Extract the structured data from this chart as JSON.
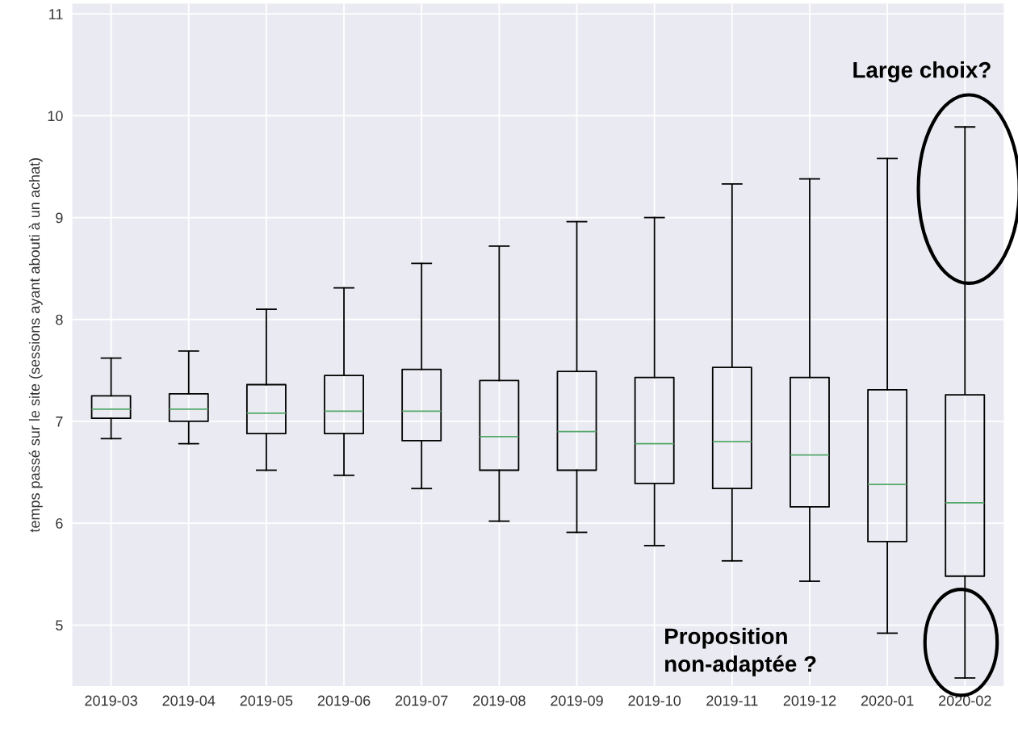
{
  "chart_data": {
    "type": "box",
    "ylabel": "temps passé sur le site (sessions ayant abouti à un achat)",
    "categories": [
      "2019-03",
      "2019-04",
      "2019-05",
      "2019-06",
      "2019-07",
      "2019-08",
      "2019-09",
      "2019-10",
      "2019-11",
      "2019-12",
      "2020-01",
      "2020-02"
    ],
    "boxes": [
      {
        "low": 6.83,
        "q1": 7.03,
        "median": 7.12,
        "q3": 7.25,
        "high": 7.62
      },
      {
        "low": 6.78,
        "q1": 7.0,
        "median": 7.12,
        "q3": 7.27,
        "high": 7.69
      },
      {
        "low": 6.52,
        "q1": 6.88,
        "median": 7.08,
        "q3": 7.36,
        "high": 8.1
      },
      {
        "low": 6.47,
        "q1": 6.88,
        "median": 7.1,
        "q3": 7.45,
        "high": 8.31
      },
      {
        "low": 6.34,
        "q1": 6.81,
        "median": 7.1,
        "q3": 7.51,
        "high": 8.55
      },
      {
        "low": 6.02,
        "q1": 6.52,
        "median": 6.85,
        "q3": 7.4,
        "high": 8.72
      },
      {
        "low": 5.91,
        "q1": 6.52,
        "median": 6.9,
        "q3": 7.49,
        "high": 8.96
      },
      {
        "low": 5.78,
        "q1": 6.39,
        "median": 6.78,
        "q3": 7.43,
        "high": 9.0
      },
      {
        "low": 5.63,
        "q1": 6.34,
        "median": 6.8,
        "q3": 7.53,
        "high": 9.33
      },
      {
        "low": 5.43,
        "q1": 6.16,
        "median": 6.67,
        "q3": 7.43,
        "high": 9.38
      },
      {
        "low": 4.92,
        "q1": 5.82,
        "median": 6.38,
        "q3": 7.31,
        "high": 9.58
      },
      {
        "low": 4.48,
        "q1": 5.48,
        "median": 6.2,
        "q3": 7.26,
        "high": 9.89
      }
    ],
    "color": "#000000",
    "ylim": [
      4.4,
      11.1
    ],
    "yticks": [
      5,
      6,
      7,
      8,
      9,
      10,
      11
    ],
    "grid": true,
    "annotations": [
      "Large choix?",
      "Proposition\nnon-adaptée ?"
    ]
  }
}
